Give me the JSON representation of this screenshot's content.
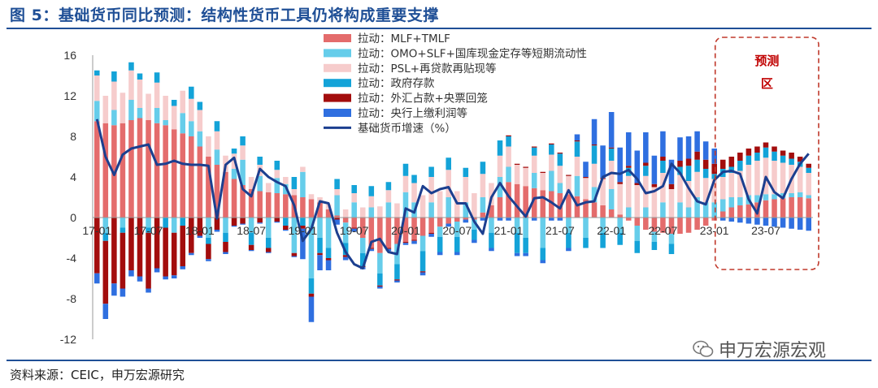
{
  "header": {
    "title": "图 5：基础货币同比预测：结构性货币工具仍将构成重要支撑"
  },
  "footer": {
    "source": "资料来源：CEIC，申万宏源研究",
    "watermark": "申万宏源宏观"
  },
  "colors": {
    "mlf": "#e46c6c",
    "omo": "#66cdea",
    "psl": "#f6cccc",
    "gov": "#14a3d8",
    "fx": "#a30d0d",
    "pboc": "#2f6fe0",
    "line": "#1c3f8f",
    "pred_box": "#c0392b"
  },
  "prediction_label": [
    "预测",
    "区"
  ],
  "chart_data": {
    "type": "bar",
    "stacked": true,
    "title": "",
    "ylim": [
      -12,
      16
    ],
    "yticks": [
      -12,
      -8,
      -4,
      0,
      4,
      8,
      12,
      16
    ],
    "x_tick_labels": [
      "17-01",
      "17-07",
      "18-01",
      "18-07",
      "19-01",
      "19-07",
      "20-01",
      "20-07",
      "21-01",
      "21-07",
      "22-01",
      "22-07",
      "23-01",
      "23-07"
    ],
    "x_tick_index": [
      0,
      6,
      12,
      18,
      24,
      30,
      36,
      42,
      48,
      54,
      60,
      66,
      72,
      78
    ],
    "months": 84,
    "prediction_start_index": 73,
    "legend": [
      {
        "key": "mlf",
        "label": "拉动：MLF+TMLF",
        "kind": "bar"
      },
      {
        "key": "omo",
        "label": "拉动：OMO+SLF+国库现金定存等短期流动性",
        "kind": "bar"
      },
      {
        "key": "psl",
        "label": "拉动：PSL+再贷款再贴现等",
        "kind": "bar"
      },
      {
        "key": "gov",
        "label": "拉动：政府存款",
        "kind": "bar"
      },
      {
        "key": "fx",
        "label": "拉动：外汇占款+央票回笼",
        "kind": "bar"
      },
      {
        "key": "pboc",
        "label": "拉动：央行上缴利润等",
        "kind": "bar"
      },
      {
        "key": "line",
        "label": "基础货币增速（%）",
        "kind": "line"
      }
    ],
    "series": {
      "mlf": [
        9.5,
        9.3,
        9.1,
        9.3,
        9.6,
        9.8,
        9.6,
        9.3,
        9.1,
        8.7,
        8.3,
        8.0,
        7.0,
        6.0,
        5.2,
        4.5,
        3.8,
        3.2,
        2.8,
        2.6,
        2.5,
        2.4,
        2.3,
        2.2,
        2.0,
        1.8,
        1.5,
        0.8,
        0.2,
        -0.5,
        -1.0,
        -2.0,
        -3.0,
        -3.5,
        -3.0,
        -2.6,
        -2.4,
        -2.2,
        -1.8,
        -1.5,
        -0.9,
        -0.6,
        -0.4,
        -0.2,
        -0.2,
        0.5,
        1.2,
        2.0,
        3.5,
        3.3,
        3.1,
        2.9,
        2.7,
        2.6,
        2.4,
        2.3,
        2.1,
        1.8,
        1.5,
        1.2,
        0.8,
        0.3,
        -0.3,
        -0.8,
        -1.2,
        -1.4,
        -1.5,
        -1.6,
        -1.6,
        -1.5,
        -1.2,
        -0.8,
        -0.3,
        0.6,
        1.0,
        1.2,
        1.3,
        1.5,
        1.7,
        1.8,
        1.9,
        2.0,
        2.0,
        1.9
      ],
      "omo": [
        2.0,
        -1.5,
        1.5,
        -1.0,
        2.0,
        1.0,
        -1.0,
        1.5,
        0.5,
        -1.5,
        2.0,
        1.5,
        1.5,
        -2.0,
        1.5,
        -1.5,
        1.0,
        2.5,
        -1.5,
        1.5,
        -2.0,
        1.5,
        1.0,
        -3.5,
        2.5,
        -6.0,
        -2.0,
        -3.0,
        2.0,
        -2.0,
        1.5,
        -1.5,
        1.0,
        -2.0,
        1.5,
        -2.0,
        2.5,
        1.5,
        -1.5,
        1.5,
        -1.0,
        2.0,
        -1.5,
        1.5,
        -1.0,
        1.5,
        -1.5,
        2.0,
        1.5,
        -1.5,
        -2.0,
        1.5,
        -3.0,
        2.0,
        1.0,
        -1.5,
        2.0,
        -2.0,
        1.5,
        -1.5,
        2.0,
        -1.5,
        1.0,
        -1.5,
        1.0,
        -1.0,
        1.5,
        -1.0,
        1.5,
        1.0,
        2.0,
        1.5,
        1.5,
        1.2,
        1.0,
        0.8,
        0.9,
        0.7,
        0.6,
        0.5,
        0.5,
        0.4,
        0.5,
        0.3
      ],
      "psl": [
        2.5,
        2.7,
        2.8,
        3.0,
        2.9,
        2.8,
        2.6,
        2.5,
        2.4,
        2.3,
        2.2,
        2.2,
        2.1,
        2.0,
        1.8,
        1.6,
        1.5,
        1.4,
        1.2,
        1.1,
        0.9,
        0.8,
        0.7,
        0.6,
        0.5,
        0.5,
        0.5,
        0.5,
        0.6,
        0.8,
        0.9,
        1.0,
        1.1,
        1.1,
        1.2,
        1.4,
        1.6,
        1.9,
        2.2,
        2.5,
        2.6,
        2.7,
        2.6,
        2.5,
        2.4,
        2.3,
        2.2,
        2.1,
        2.0,
        1.9,
        1.8,
        1.7,
        1.7,
        1.6,
        1.7,
        1.8,
        1.9,
        2.1,
        2.3,
        2.6,
        2.8,
        3.0,
        3.1,
        3.2,
        3.1,
        3.0,
        2.9,
        2.8,
        2.7,
        2.6,
        2.5,
        2.4,
        2.3,
        2.2,
        2.4,
        2.6,
        3.0,
        3.4,
        3.6,
        3.3,
        3.0,
        2.8,
        2.5,
        2.2
      ],
      "gov": [
        0.5,
        -0.8,
        1.0,
        -0.5,
        0.8,
        0.6,
        -0.5,
        1.0,
        -1.0,
        0.6,
        -0.8,
        1.2,
        0.8,
        -0.6,
        1.0,
        -0.9,
        0.5,
        0.9,
        -1.2,
        0.8,
        -1.0,
        0.9,
        -0.8,
        1.2,
        -0.8,
        -1.5,
        -1.5,
        -1.0,
        1.0,
        -1.2,
        0.8,
        -1.3,
        1.0,
        -1.2,
        0.8,
        -1.5,
        1.2,
        0.8,
        -2.0,
        1.0,
        -1.5,
        1.2,
        -1.5,
        0.9,
        -1.0,
        1.2,
        -1.5,
        1.5,
        1.0,
        -2.0,
        -1.5,
        0.8,
        -1.2,
        1.0,
        1.2,
        -1.5,
        1.5,
        -1.0,
        1.8,
        -1.5,
        1.2,
        -1.2,
        0.8,
        -1.2,
        1.0,
        -0.8,
        1.2,
        -1.0,
        0.8,
        1.5,
        1.2,
        0.9,
        0.5,
        0.8,
        0.6,
        1.0,
        0.9,
        0.8,
        1.0,
        0.9,
        0.7,
        0.6,
        0.5,
        0.5
      ],
      "fx": [
        -5.5,
        -6.2,
        -6.5,
        -5.5,
        -5.2,
        -5.8,
        -5.5,
        -5.0,
        -4.8,
        -4.2,
        -4.0,
        -3.5,
        -1.8,
        -1.5,
        -1.2,
        -1.0,
        -0.8,
        -0.6,
        -0.5,
        -0.5,
        -0.4,
        -0.4,
        -0.4,
        -0.3,
        -0.3,
        -0.3,
        -0.2,
        -0.2,
        -0.2,
        -0.2,
        -0.1,
        -0.1,
        -0.1,
        -0.1,
        -0.1,
        -0.1,
        -0.1,
        -0.1,
        -0.1,
        -0.1,
        0.0,
        0.0,
        0.0,
        0.0,
        0.0,
        0.0,
        0.0,
        0.0,
        0.1,
        0.1,
        0.1,
        0.1,
        0.1,
        0.1,
        0.1,
        0.1,
        0.1,
        0.1,
        0.1,
        0.1,
        0.1,
        0.2,
        0.2,
        0.2,
        0.3,
        0.3,
        0.4,
        0.5,
        0.6,
        0.7,
        0.8,
        0.9,
        1.0,
        0.9,
        1.0,
        0.8,
        0.7,
        0.6,
        0.5,
        0.5,
        0.5,
        0.6,
        0.5,
        0.4
      ],
      "pboc": [
        -1.0,
        -1.5,
        -1.2,
        -0.8,
        -0.6,
        -0.5,
        -0.4,
        -0.4,
        -0.3,
        -0.3,
        -0.3,
        -0.2,
        -0.2,
        -0.2,
        -0.2,
        -0.2,
        -0.1,
        -0.1,
        -0.1,
        -0.1,
        -0.1,
        -0.1,
        -0.1,
        -0.1,
        -3.0,
        -2.5,
        -1.5,
        -1.0,
        -0.5,
        -0.3,
        -0.3,
        -0.2,
        -0.2,
        -0.2,
        -0.2,
        -0.2,
        -0.2,
        -0.3,
        -0.3,
        -0.3,
        -0.3,
        -0.3,
        -0.3,
        -0.3,
        -0.3,
        -0.3,
        -0.3,
        -0.3,
        -0.3,
        -0.3,
        -0.3,
        -0.3,
        -0.3,
        -0.3,
        -0.3,
        -0.3,
        0.6,
        1.5,
        2.5,
        3.2,
        3.5,
        3.4,
        3.3,
        3.2,
        3.0,
        2.8,
        2.5,
        2.4,
        2.3,
        2.2,
        2.0,
        1.8,
        1.5,
        -0.3,
        -0.4,
        -0.5,
        -0.6,
        -0.7,
        -0.8,
        -0.9,
        -1.0,
        -1.1,
        -1.2,
        -1.3
      ],
      "line": [
        9.7,
        6.0,
        4.2,
        6.2,
        6.8,
        7.0,
        7.2,
        5.2,
        5.3,
        5.6,
        5.3,
        5.2,
        5.2,
        5.1,
        -0.1,
        5.2,
        5.9,
        2.8,
        2.1,
        4.8,
        4.0,
        3.5,
        3.1,
        1.2,
        -2.3,
        -1.1,
        1.6,
        1.4,
        -1.5,
        -3.4,
        -4.6,
        -5.0,
        -2.4,
        -2.1,
        -3.4,
        -3.6,
        0.9,
        0.5,
        3.1,
        2.4,
        2.8,
        3.0,
        1.4,
        1.4,
        -0.4,
        -1.6,
        2.0,
        3.4,
        2.1,
        1.1,
        0.1,
        1.9,
        2.0,
        1.5,
        0.9,
        2.7,
        1.2,
        1.5,
        1.6,
        4.0,
        4.4,
        4.3,
        4.7,
        3.8,
        2.4,
        2.6,
        3.1,
        5.3,
        4.4,
        2.9,
        1.6,
        1.3,
        3.7,
        4.5,
        4.6,
        4.3,
        1.8,
        0.4,
        4.0,
        2.5,
        1.9,
        3.8,
        5.3,
        6.3
      ]
    }
  }
}
